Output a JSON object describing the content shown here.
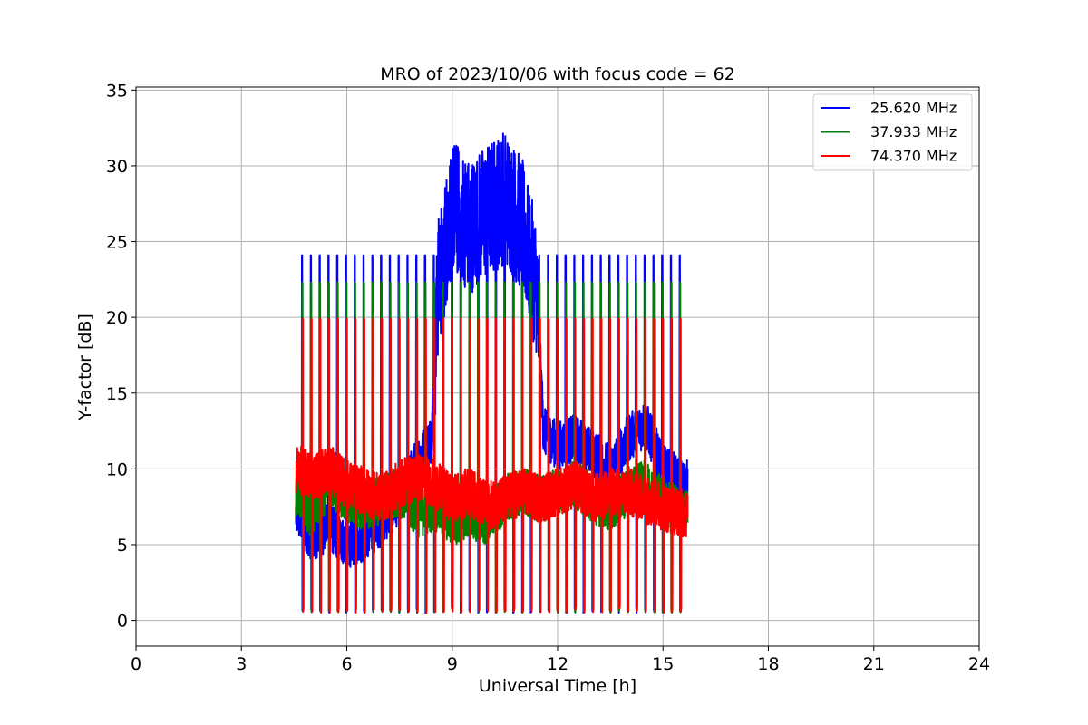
{
  "chart_data": {
    "type": "line",
    "title": "MRO of 2023/10/06 with focus code = 62",
    "xlabel": "Universal Time [h]",
    "ylabel": "Y-factor [dB]",
    "xlim": [
      0,
      24
    ],
    "ylim": [
      -1.7,
      35.2
    ],
    "xticks": [
      0,
      3,
      6,
      9,
      12,
      15,
      18,
      21,
      24
    ],
    "yticks": [
      0,
      5,
      10,
      15,
      20,
      25,
      30,
      35
    ],
    "grid": true,
    "legend_position": "upper-right",
    "series": [
      {
        "name": "25.620 MHz",
        "color": "#0000ff",
        "data_range_x": [
          4.55,
          15.7
        ],
        "calibration_peak": 24.1,
        "calibration_floor": 0.5,
        "pulse_period_h": 0.25,
        "baseline": [
          [
            4.6,
            7.0
          ],
          [
            5.0,
            5.5
          ],
          [
            5.5,
            6.2
          ],
          [
            6.0,
            5.0
          ],
          [
            6.5,
            5.5
          ],
          [
            7.0,
            6.5
          ],
          [
            7.5,
            8.0
          ],
          [
            8.0,
            10.5
          ],
          [
            8.4,
            12.0
          ],
          [
            8.6,
            22.0
          ],
          [
            9.0,
            27.5
          ],
          [
            9.5,
            26.0
          ],
          [
            10.0,
            27.0
          ],
          [
            10.5,
            28.0
          ],
          [
            11.0,
            26.0
          ],
          [
            11.4,
            22.0
          ],
          [
            11.6,
            12.5
          ],
          [
            12.0,
            11.5
          ],
          [
            12.5,
            12.0
          ],
          [
            13.0,
            11.0
          ],
          [
            13.5,
            10.0
          ],
          [
            14.0,
            12.0
          ],
          [
            14.5,
            13.0
          ],
          [
            15.0,
            10.0
          ],
          [
            15.6,
            9.0
          ]
        ]
      },
      {
        "name": "37.933 MHz",
        "color": "#008000",
        "data_range_x": [
          4.55,
          15.7
        ],
        "calibration_peak": 22.3,
        "calibration_floor": 0.5,
        "pulse_period_h": 0.25,
        "baseline": [
          [
            4.6,
            8.5
          ],
          [
            5.0,
            7.0
          ],
          [
            5.5,
            9.0
          ],
          [
            6.0,
            8.0
          ],
          [
            6.5,
            7.5
          ],
          [
            7.0,
            8.0
          ],
          [
            7.5,
            8.5
          ],
          [
            8.0,
            7.0
          ],
          [
            8.5,
            7.5
          ],
          [
            9.0,
            6.5
          ],
          [
            9.5,
            7.0
          ],
          [
            10.0,
            6.5
          ],
          [
            10.5,
            8.0
          ],
          [
            11.0,
            8.5
          ],
          [
            11.5,
            8.0
          ],
          [
            12.0,
            8.5
          ],
          [
            12.5,
            9.0
          ],
          [
            13.0,
            8.0
          ],
          [
            13.5,
            7.5
          ],
          [
            14.0,
            8.5
          ],
          [
            14.5,
            9.0
          ],
          [
            15.0,
            8.0
          ],
          [
            15.6,
            7.0
          ]
        ]
      },
      {
        "name": "74.370 MHz",
        "color": "#ff0000",
        "data_range_x": [
          4.55,
          15.7
        ],
        "calibration_peak": 19.9,
        "calibration_floor": 0.5,
        "pulse_period_h": 0.25,
        "baseline": [
          [
            4.6,
            10.0
          ],
          [
            5.0,
            9.5
          ],
          [
            5.5,
            10.0
          ],
          [
            6.0,
            9.0
          ],
          [
            6.5,
            8.5
          ],
          [
            7.0,
            8.0
          ],
          [
            7.5,
            9.0
          ],
          [
            8.0,
            9.5
          ],
          [
            8.5,
            9.0
          ],
          [
            9.0,
            8.0
          ],
          [
            9.5,
            8.5
          ],
          [
            10.0,
            7.5
          ],
          [
            10.5,
            8.0
          ],
          [
            11.0,
            8.5
          ],
          [
            11.5,
            8.0
          ],
          [
            12.0,
            8.5
          ],
          [
            12.5,
            9.0
          ],
          [
            13.0,
            8.0
          ],
          [
            13.5,
            8.5
          ],
          [
            14.0,
            8.5
          ],
          [
            14.5,
            8.0
          ],
          [
            15.0,
            7.5
          ],
          [
            15.6,
            7.0
          ]
        ]
      }
    ]
  }
}
